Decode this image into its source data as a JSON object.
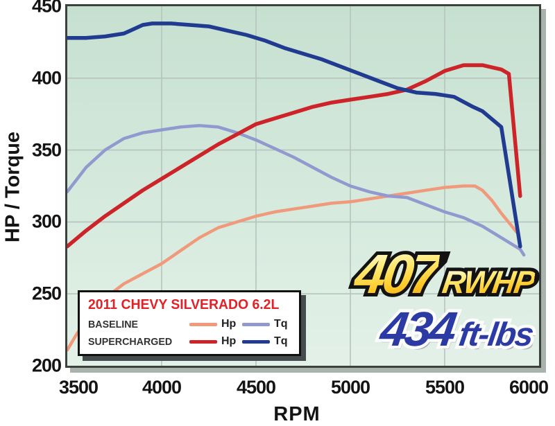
{
  "axes": {
    "y_title": "HP / Torque",
    "x_title": "RPM"
  },
  "legend": {
    "title": "2011 CHEVY SILVERADO 6.2L",
    "rows": [
      {
        "label": "BASELINE",
        "hp_label": "Hp",
        "tq_label": "Tq"
      },
      {
        "label": "SUPERCHARGED",
        "hp_label": "Hp",
        "tq_label": "Tq"
      }
    ]
  },
  "callout": {
    "hp_value": "407",
    "hp_unit": "RWHP",
    "tq_value": "434",
    "tq_unit": "ft-lbs"
  },
  "colors": {
    "baseline_hp": "#f09a7b",
    "baseline_tq": "#9199ce",
    "supercharged_hp": "#cd2429",
    "supercharged_tq": "#213b90",
    "grid": "#b5c4be",
    "plot_border": "#3b423e",
    "legend_title": "#e02329",
    "callout_gold": "#ffc928",
    "callout_blue": "#2c3aa4"
  },
  "chart_data": {
    "type": "line",
    "title": "2011 Chevy Silverado 6.2L dyno: baseline vs supercharged",
    "xlabel": "RPM",
    "ylabel": "HP / Torque",
    "xlim": [
      3500,
      6000
    ],
    "ylim": [
      200,
      450
    ],
    "xticks": [
      3500,
      4000,
      4500,
      5000,
      5500,
      6000
    ],
    "yticks": [
      200,
      250,
      300,
      350,
      400,
      450
    ],
    "grid": true,
    "legend_position": "lower left",
    "peak_rwhp": 407,
    "peak_torque_ftlbs": 434,
    "series": [
      {
        "name": "Baseline Hp",
        "color": "#f09a7b",
        "width": 4.5,
        "points": [
          [
            3500,
            211
          ],
          [
            3550,
            222
          ],
          [
            3600,
            232
          ],
          [
            3700,
            247
          ],
          [
            3800,
            257
          ],
          [
            3900,
            264
          ],
          [
            4000,
            271
          ],
          [
            4100,
            280
          ],
          [
            4200,
            289
          ],
          [
            4300,
            296
          ],
          [
            4400,
            300
          ],
          [
            4500,
            304
          ],
          [
            4600,
            307
          ],
          [
            4700,
            309
          ],
          [
            4800,
            311
          ],
          [
            4900,
            313
          ],
          [
            5000,
            314
          ],
          [
            5100,
            316
          ],
          [
            5200,
            318
          ],
          [
            5300,
            320
          ],
          [
            5400,
            322
          ],
          [
            5500,
            324
          ],
          [
            5600,
            325
          ],
          [
            5660,
            325
          ],
          [
            5700,
            322
          ],
          [
            5750,
            315
          ],
          [
            5800,
            306
          ],
          [
            5850,
            298
          ],
          [
            5880,
            293
          ]
        ]
      },
      {
        "name": "Baseline Tq",
        "color": "#9199ce",
        "width": 4.5,
        "points": [
          [
            3500,
            321
          ],
          [
            3600,
            338
          ],
          [
            3700,
            350
          ],
          [
            3800,
            358
          ],
          [
            3900,
            362
          ],
          [
            4000,
            364
          ],
          [
            4100,
            366
          ],
          [
            4200,
            367
          ],
          [
            4300,
            366
          ],
          [
            4400,
            362
          ],
          [
            4500,
            357
          ],
          [
            4600,
            351
          ],
          [
            4700,
            345
          ],
          [
            4800,
            338
          ],
          [
            4900,
            331
          ],
          [
            5000,
            325
          ],
          [
            5100,
            321
          ],
          [
            5200,
            318
          ],
          [
            5300,
            317
          ],
          [
            5400,
            312
          ],
          [
            5500,
            307
          ],
          [
            5600,
            303
          ],
          [
            5700,
            297
          ],
          [
            5800,
            289
          ],
          [
            5900,
            281
          ],
          [
            5920,
            277
          ]
        ]
      },
      {
        "name": "Supercharged Hp",
        "color": "#cd2429",
        "width": 5.5,
        "points": [
          [
            3500,
            283
          ],
          [
            3600,
            294
          ],
          [
            3700,
            304
          ],
          [
            3800,
            313
          ],
          [
            3900,
            322
          ],
          [
            4000,
            330
          ],
          [
            4100,
            338
          ],
          [
            4200,
            346
          ],
          [
            4300,
            354
          ],
          [
            4400,
            361
          ],
          [
            4500,
            368
          ],
          [
            4600,
            372
          ],
          [
            4700,
            376
          ],
          [
            4800,
            380
          ],
          [
            4900,
            383
          ],
          [
            5000,
            385
          ],
          [
            5100,
            387
          ],
          [
            5200,
            389
          ],
          [
            5300,
            392
          ],
          [
            5400,
            398
          ],
          [
            5500,
            405
          ],
          [
            5600,
            409
          ],
          [
            5700,
            409
          ],
          [
            5800,
            406
          ],
          [
            5840,
            403
          ],
          [
            5900,
            318
          ]
        ]
      },
      {
        "name": "Supercharged Tq",
        "color": "#213b90",
        "width": 5.5,
        "points": [
          [
            3500,
            428
          ],
          [
            3600,
            428
          ],
          [
            3700,
            429
          ],
          [
            3800,
            431
          ],
          [
            3850,
            434
          ],
          [
            3900,
            437
          ],
          [
            3950,
            438
          ],
          [
            4050,
            438
          ],
          [
            4150,
            437
          ],
          [
            4250,
            436
          ],
          [
            4350,
            433
          ],
          [
            4450,
            430
          ],
          [
            4550,
            426
          ],
          [
            4650,
            421
          ],
          [
            4750,
            417
          ],
          [
            4850,
            413
          ],
          [
            4950,
            408
          ],
          [
            5050,
            403
          ],
          [
            5150,
            398
          ],
          [
            5250,
            393
          ],
          [
            5350,
            390
          ],
          [
            5450,
            389
          ],
          [
            5550,
            387
          ],
          [
            5650,
            380
          ],
          [
            5700,
            377
          ],
          [
            5800,
            366
          ],
          [
            5900,
            283
          ]
        ]
      }
    ]
  }
}
